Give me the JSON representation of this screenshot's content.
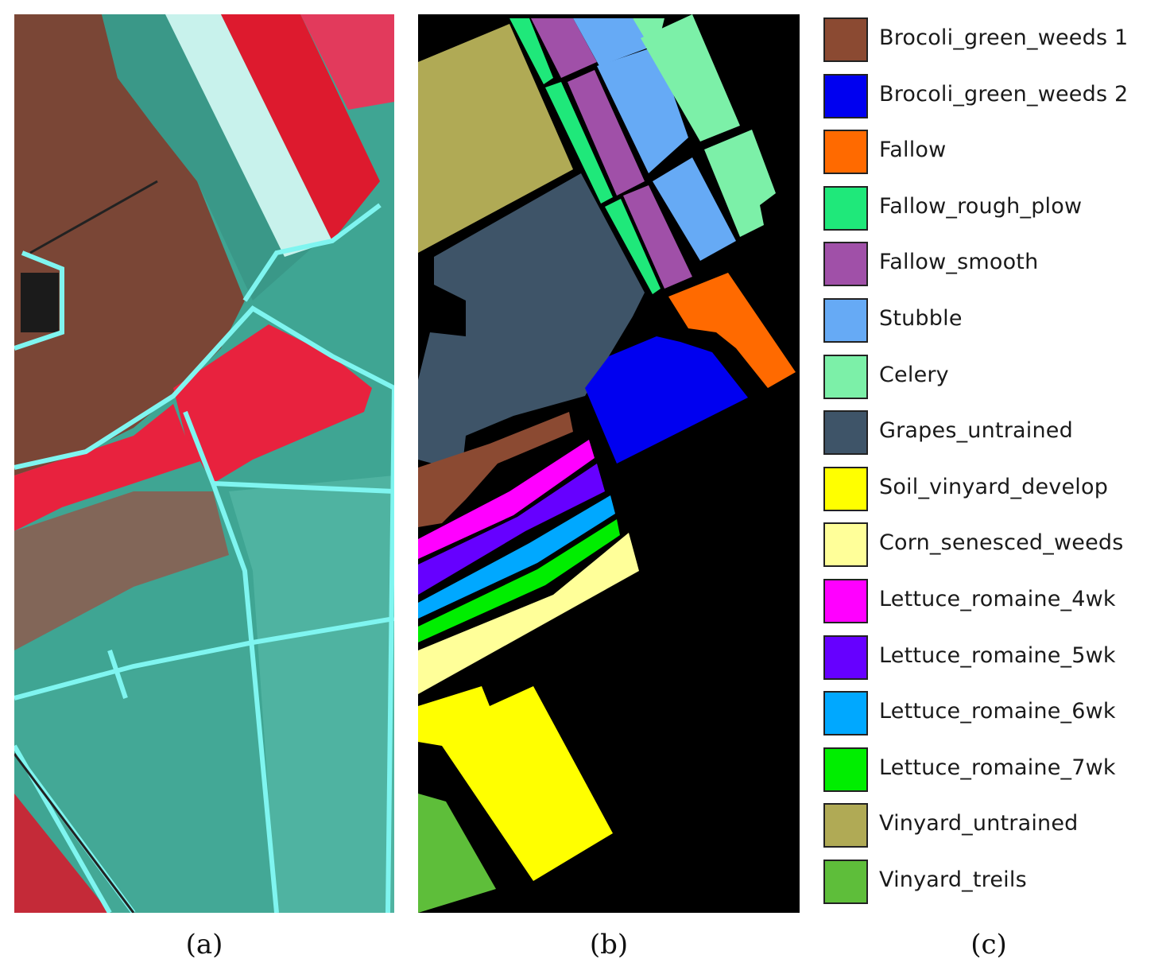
{
  "captions": {
    "a": "(a)",
    "b": "(b)",
    "c": "(c)"
  },
  "legend": [
    {
      "label": "Brocoli_green_weeds 1",
      "color": "#8B4A32"
    },
    {
      "label": "Brocoli_green_weeds 2",
      "color": "#0000F0"
    },
    {
      "label": "Fallow",
      "color": "#FF6A00"
    },
    {
      "label": "Fallow_rough_plow",
      "color": "#1FE87A"
    },
    {
      "label": "Fallow_smooth",
      "color": "#A050A8"
    },
    {
      "label": "Stubble",
      "color": "#66AAF5"
    },
    {
      "label": "Celery",
      "color": "#7CF0A8"
    },
    {
      "label": "Grapes_untrained",
      "color": "#3E5468"
    },
    {
      "label": "Soil_vinyard_develop",
      "color": "#FFFF00"
    },
    {
      "label": "Corn_senesced_weeds",
      "color": "#FFFF99"
    },
    {
      "label": "Lettuce_romaine_4wk",
      "color": "#FF00FF"
    },
    {
      "label": "Lettuce_romaine_5wk",
      "color": "#6600FF"
    },
    {
      "label": "Lettuce_romaine_6wk",
      "color": "#00A8FF"
    },
    {
      "label": "Lettuce_romaine_7wk",
      "color": "#00EE00"
    },
    {
      "label": "Vinyard_untrained",
      "color": "#B0AA55"
    },
    {
      "label": "Vinyard_treils",
      "color": "#5EBE3A"
    }
  ],
  "colors": {
    "background_b": "#000000",
    "teal_field": "#3FA593",
    "teal_light": "#58C0AE",
    "road": "#7FF5F0",
    "red_field": "#E8223E",
    "pink_field": "#E83A5A",
    "brown_field": "#7A4636"
  }
}
